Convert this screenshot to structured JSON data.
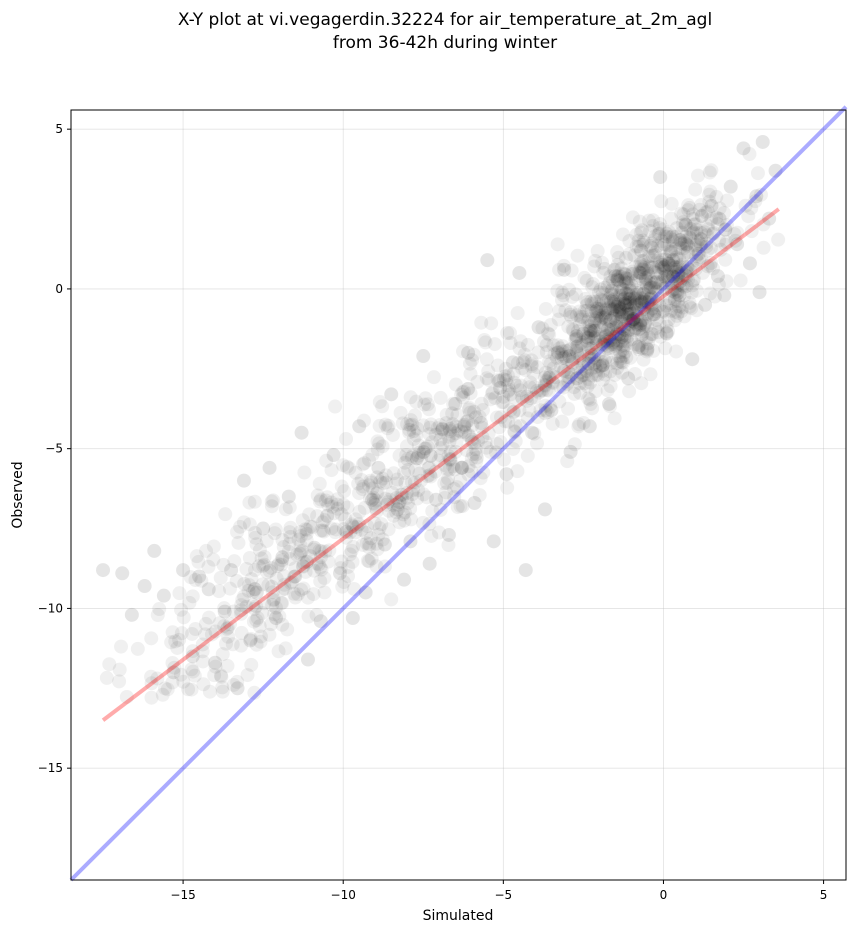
{
  "chart_data": {
    "type": "scatter",
    "title_lines": [
      "X-Y plot at vi.vegagerdin.32224 for air_temperature_at_2m_agl",
      "from 36-42h during winter"
    ],
    "xlabel": "Simulated",
    "ylabel": "Observed",
    "xlim": [
      -18.5,
      5.7
    ],
    "ylim": [
      -18.5,
      5.6
    ],
    "xticks": [
      -15,
      -10,
      -5,
      0,
      5
    ],
    "yticks": [
      -15,
      -10,
      -5,
      0,
      5
    ],
    "xtick_labels": [
      "−15",
      "−10",
      "−5",
      "0",
      "5"
    ],
    "ytick_labels": [
      "−15",
      "−10",
      "−5",
      "0",
      "5"
    ],
    "grid": true,
    "colors": {
      "points": "#000000",
      "regression_line": "#ff0000",
      "identity_line": "#0000ff"
    },
    "regression_line": {
      "x": [
        -17.5,
        3.6
      ],
      "y": [
        -13.5,
        2.5
      ]
    },
    "identity_line": {
      "x": [
        -18.5,
        5.7
      ],
      "y": [
        -18.5,
        5.7
      ]
    },
    "points_sample": [
      [
        -17.5,
        -8.8
      ],
      [
        -16.9,
        -8.9
      ],
      [
        -16.6,
        -10.2
      ],
      [
        -16.2,
        -9.3
      ],
      [
        -15.9,
        -8.2
      ],
      [
        -15.6,
        -9.6
      ],
      [
        -15.3,
        -12.0
      ],
      [
        -15.0,
        -8.8
      ],
      [
        -14.7,
        -11.5
      ],
      [
        -14.5,
        -9.0
      ],
      [
        -14.2,
        -9.4
      ],
      [
        -14.0,
        -11.7
      ],
      [
        -13.7,
        -10.1
      ],
      [
        -13.5,
        -8.8
      ],
      [
        -13.3,
        -12.5
      ],
      [
        -13.1,
        -6.0
      ],
      [
        -12.9,
        -11.0
      ],
      [
        -12.7,
        -9.5
      ],
      [
        -12.5,
        -7.5
      ],
      [
        -12.3,
        -5.6
      ],
      [
        -12.1,
        -10.3
      ],
      [
        -11.9,
        -8.4
      ],
      [
        -11.7,
        -6.5
      ],
      [
        -11.5,
        -9.0
      ],
      [
        -11.3,
        -4.5
      ],
      [
        -11.1,
        -11.6
      ],
      [
        -10.9,
        -8.1
      ],
      [
        -10.7,
        -10.4
      ],
      [
        -10.5,
        -7.1
      ],
      [
        -10.3,
        -5.2
      ],
      [
        -10.1,
        -8.9
      ],
      [
        -9.9,
        -7.6
      ],
      [
        -9.7,
        -10.3
      ],
      [
        -9.5,
        -4.3
      ],
      [
        -9.3,
        -9.5
      ],
      [
        -9.1,
        -6.6
      ],
      [
        -8.9,
        -5.6
      ],
      [
        -8.7,
        -8.0
      ],
      [
        -8.5,
        -3.3
      ],
      [
        -8.3,
        -6.9
      ],
      [
        -8.1,
        -9.1
      ],
      [
        -7.9,
        -7.9
      ],
      [
        -7.7,
        -5.3
      ],
      [
        -7.5,
        -2.1
      ],
      [
        -7.3,
        -8.6
      ],
      [
        -7.1,
        -6.6
      ],
      [
        -6.9,
        -4.4
      ],
      [
        -6.7,
        -7.7
      ],
      [
        -6.5,
        -3.6
      ],
      [
        -6.3,
        -5.6
      ],
      [
        -6.1,
        -2.0
      ],
      [
        -5.9,
        -6.7
      ],
      [
        -5.7,
        -4.2
      ],
      [
        -5.5,
        0.9
      ],
      [
        -5.3,
        -7.9
      ],
      [
        -5.1,
        -3.1
      ],
      [
        -4.9,
        -5.8
      ],
      [
        -4.7,
        -2.3
      ],
      [
        -4.5,
        0.5
      ],
      [
        -4.3,
        -8.8
      ],
      [
        -4.1,
        -4.5
      ],
      [
        -3.9,
        -1.2
      ],
      [
        -3.7,
        -6.9
      ],
      [
        -3.5,
        -3.8
      ],
      [
        -3.3,
        -2.0
      ],
      [
        -3.1,
        0.6
      ],
      [
        -2.9,
        -5.1
      ],
      [
        -2.7,
        -2.8
      ],
      [
        -2.5,
        -1.4
      ],
      [
        -2.3,
        -4.3
      ],
      [
        -2.1,
        -0.7
      ],
      [
        -1.9,
        -2.4
      ],
      [
        -1.7,
        -3.6
      ],
      [
        -1.5,
        0.4
      ],
      [
        -1.3,
        -1.5
      ],
      [
        -1.1,
        -2.8
      ],
      [
        -0.9,
        -0.3
      ],
      [
        -0.7,
        1.2
      ],
      [
        -0.5,
        -1.9
      ],
      [
        -0.3,
        -0.8
      ],
      [
        -0.1,
        3.5
      ],
      [
        0.1,
        -1.4
      ],
      [
        0.3,
        0.9
      ],
      [
        0.5,
        -0.2
      ],
      [
        0.7,
        2.0
      ],
      [
        0.9,
        -2.2
      ],
      [
        1.1,
        1.1
      ],
      [
        1.3,
        -0.5
      ],
      [
        1.5,
        2.6
      ],
      [
        1.7,
        0.4
      ],
      [
        1.9,
        -0.2
      ],
      [
        2.1,
        3.2
      ],
      [
        2.3,
        1.4
      ],
      [
        2.5,
        4.4
      ],
      [
        2.7,
        0.8
      ],
      [
        2.9,
        2.9
      ],
      [
        3.1,
        4.6
      ],
      [
        3.3,
        2.2
      ],
      [
        3.5,
        3.7
      ],
      [
        3.0,
        -0.1
      ]
    ]
  }
}
